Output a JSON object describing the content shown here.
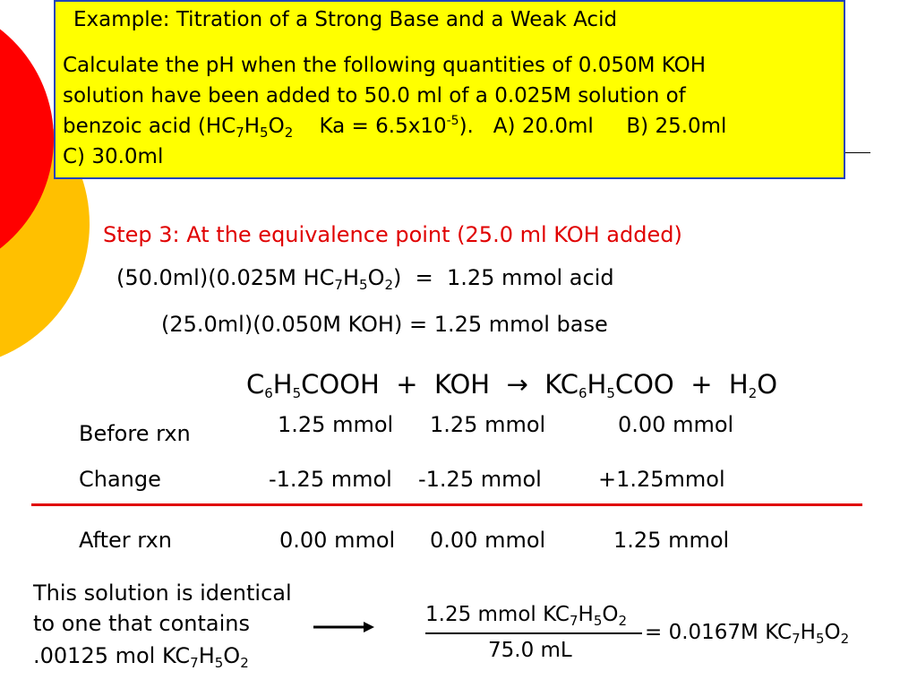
{
  "colors": {
    "box_fill": "#ffff00",
    "box_border": "#2244bb",
    "accent_red": "#e00000",
    "circle_red": "#ff0000",
    "circle_orange": "#ffc000"
  },
  "problem": {
    "title": "Example:  Titration of a Strong Base and a Weak Acid",
    "line1": "Calculate the pH when the following quantities of 0.050M KOH",
    "line2": "solution have been added to 50.0 ml of a 0.025M solution of",
    "line3": [
      {
        "t": "benzoic acid (HC"
      },
      {
        "sub": "7"
      },
      {
        "t": "H"
      },
      {
        "sub": "5"
      },
      {
        "t": "O"
      },
      {
        "sub": "2"
      },
      {
        "t": "    Ka = 6.5x10"
      },
      {
        "sup": "-5"
      },
      {
        "t": ").   A) 20.0ml     B) 25.0ml"
      }
    ],
    "line4": "C) 30.0ml"
  },
  "step": {
    "heading": "Step 3:  At the equivalence point (25.0 ml KOH added)",
    "acid": [
      {
        "t": "(50.0ml)(0.025M HC"
      },
      {
        "sub": "7"
      },
      {
        "t": "H"
      },
      {
        "sub": "5"
      },
      {
        "t": "O"
      },
      {
        "sub": "2"
      },
      {
        "t": ")  =  1.25 mmol acid"
      }
    ],
    "base": "(25.0ml)(0.050M KOH)  =  1.25 mmol base"
  },
  "equation": [
    {
      "t": "C"
    },
    {
      "sub": "6"
    },
    {
      "t": "H"
    },
    {
      "sub": "5"
    },
    {
      "t": "COOH  +  KOH  →  KC"
    },
    {
      "sub": "6"
    },
    {
      "t": "H"
    },
    {
      "sub": "5"
    },
    {
      "t": "COO  +  H"
    },
    {
      "sub": "2"
    },
    {
      "t": "O"
    }
  ],
  "table": {
    "before": {
      "label": "Before rxn",
      "values": [
        "1.25 mmol",
        "1.25 mmol",
        "0.00 mmol"
      ]
    },
    "change": {
      "label": "Change",
      "values": [
        "-1.25 mmol",
        "-1.25 mmol",
        "+1.25mmol"
      ]
    },
    "after": {
      "label": "After rxn",
      "values": [
        "0.00 mmol",
        "0.00 mmol",
        "1.25 mmol"
      ]
    }
  },
  "conclusion": {
    "line1": "This solution is identical",
    "line2": "to one that contains",
    "line3": [
      {
        "t": ".00125 mol KC"
      },
      {
        "sub": "7"
      },
      {
        "t": "H"
      },
      {
        "sub": "5"
      },
      {
        "t": "O"
      },
      {
        "sub": "2"
      }
    ],
    "numerator": [
      {
        "t": "1.25 mmol KC"
      },
      {
        "sub": "7"
      },
      {
        "t": "H"
      },
      {
        "sub": "5"
      },
      {
        "t": "O"
      },
      {
        "sub": "2"
      }
    ],
    "denominator": "75.0 mL",
    "result": [
      {
        "t": "= 0.0167M KC"
      },
      {
        "sub": "7"
      },
      {
        "t": "H"
      },
      {
        "sub": "5"
      },
      {
        "t": "O"
      },
      {
        "sub": "2"
      }
    ]
  }
}
